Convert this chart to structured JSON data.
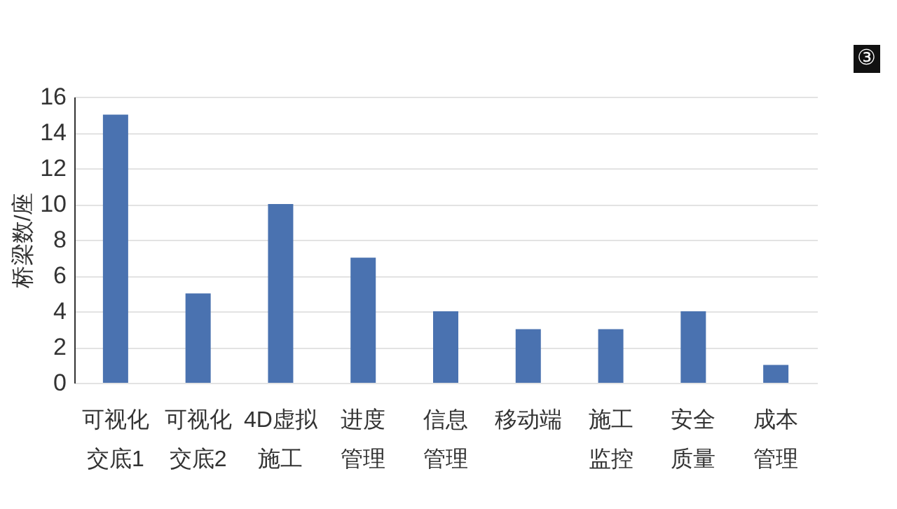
{
  "chart_data": {
    "type": "bar",
    "ylabel": "桥梁数/座",
    "categories": [
      "可视化交底1",
      "可视化交底2",
      "4D虚拟施工",
      "进度管理",
      "信息管理",
      "移动端",
      "施工监控",
      "安全质量",
      "成本管理"
    ],
    "values": [
      15,
      5,
      10,
      7,
      4,
      3,
      3,
      4,
      1
    ],
    "color": "#4a72b0",
    "ylim": [
      0,
      16
    ],
    "yticks": [
      0,
      2,
      4,
      6,
      8,
      10,
      12,
      14,
      16
    ],
    "grid": "y",
    "annotations": [
      "③"
    ]
  }
}
